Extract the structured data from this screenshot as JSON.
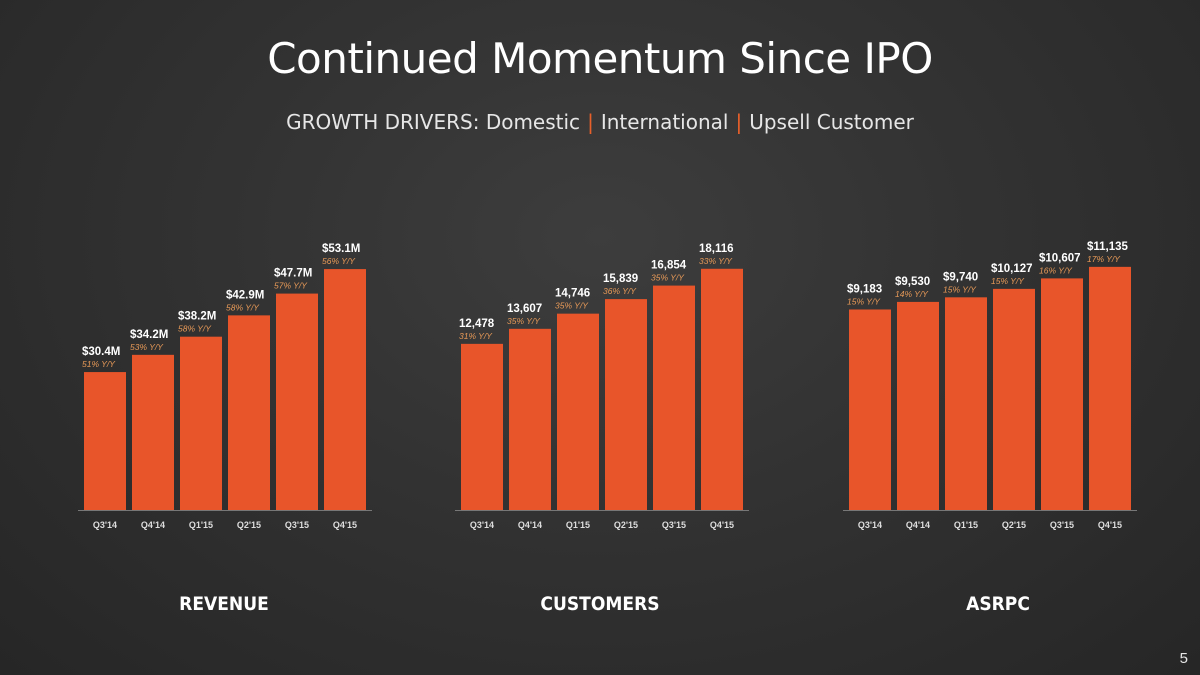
{
  "slide": {
    "title": "Continued Momentum Since IPO",
    "subtitle": {
      "prefix": "GROWTH DRIVERS:",
      "items": [
        "Domestic",
        "International",
        "Upsell Customer"
      ],
      "separator": "|"
    },
    "page_number": "5",
    "colors": {
      "bar": "#e8552a",
      "growth_label": "#e89a58",
      "axis": "#777777",
      "background": "#323232"
    }
  },
  "chart_data": [
    {
      "type": "bar",
      "title": "REVENUE",
      "categories": [
        "Q3'14",
        "Q4'14",
        "Q1'15",
        "Q2'15",
        "Q3'15",
        "Q4'15"
      ],
      "values": [
        30.4,
        34.2,
        38.2,
        42.9,
        47.7,
        53.1
      ],
      "value_labels": [
        "$30.4M",
        "$34.2M",
        "$38.2M",
        "$42.9M",
        "$47.7M",
        "$53.1M"
      ],
      "growth_labels": [
        "51% Y/Y",
        "53% Y/Y",
        "58% Y/Y",
        "58% Y/Y",
        "57% Y/Y",
        "56% Y/Y"
      ],
      "ylim": [
        0,
        54
      ]
    },
    {
      "type": "bar",
      "title": "CUSTOMERS",
      "categories": [
        "Q3'14",
        "Q4'14",
        "Q1'15",
        "Q2'15",
        "Q3'15",
        "Q4'15"
      ],
      "values": [
        12478,
        13607,
        14746,
        15839,
        16854,
        18116
      ],
      "value_labels": [
        "12,478",
        "13,607",
        "14,746",
        "15,839",
        "16,854",
        "18,116"
      ],
      "growth_labels": [
        "31% Y/Y",
        "35% Y/Y",
        "35% Y/Y",
        "36% Y/Y",
        "35% Y/Y",
        "33% Y/Y"
      ],
      "ylim": [
        0,
        18400
      ]
    },
    {
      "type": "bar",
      "title": "ASRPC",
      "categories": [
        "Q3'14",
        "Q4'14",
        "Q1'15",
        "Q2'15",
        "Q3'15",
        "Q4'15"
      ],
      "values": [
        9183,
        9530,
        9740,
        10127,
        10607,
        11135
      ],
      "value_labels": [
        "$9,183",
        "$9,530",
        "$9,740",
        "$10,127",
        "$10,607",
        "$11,135"
      ],
      "growth_labels": [
        "15% Y/Y",
        "14% Y/Y",
        "15% Y/Y",
        "15% Y/Y",
        "16% Y/Y",
        "17% Y/Y"
      ],
      "ylim": [
        0,
        11220
      ]
    }
  ]
}
